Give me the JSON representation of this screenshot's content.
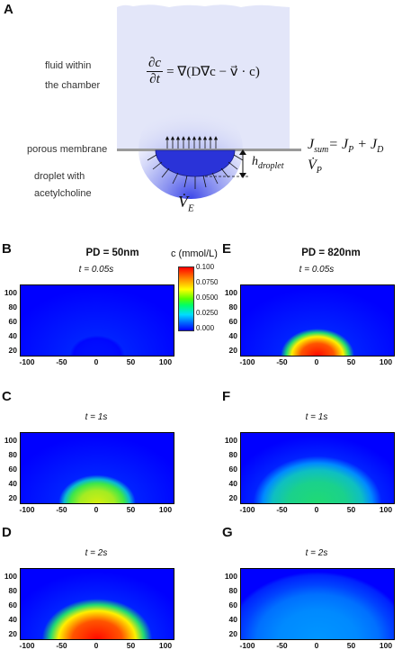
{
  "panel_a": {
    "letter": "A",
    "fluid_label_1": "fluid within",
    "fluid_label_2": "the chamber",
    "membrane_label": "porous membrane",
    "droplet_label_1": "droplet with",
    "droplet_label_2": "acetylcholine",
    "equation_lhs_num": "∂c",
    "equation_lhs_den": "∂t",
    "equation_rhs": "= ∇(D∇c − v⃗ · c)",
    "h_label": "h",
    "h_sub": "droplet",
    "j_sum": "J",
    "j_sum_sub": "sum",
    "j_eq": "= J",
    "j_p_sub": "P",
    "j_plus": " + J",
    "j_d_sub": "D",
    "vp": "V̇",
    "vp_sub": "P",
    "ve": "V̇",
    "ve_sub": "E"
  },
  "colorbar": {
    "title": "c (mmol/L)",
    "ticks": [
      "0.100",
      "0.0750",
      "0.0500",
      "0.0250",
      "0.000"
    ]
  },
  "columns": {
    "left_title": "PD = 50nm",
    "right_title": "PD = 820nm"
  },
  "axes": {
    "y_ticks": [
      "100",
      "80",
      "60",
      "40",
      "20"
    ],
    "x_ticks": [
      "-100",
      "-50",
      "0",
      "50",
      "100"
    ]
  },
  "panels": [
    {
      "letter": "B",
      "time": "t = 0.05s",
      "intensity": 0.02,
      "radius": 0.3
    },
    {
      "letter": "C",
      "time": "t = 1s",
      "intensity": 0.7,
      "radius": 0.42
    },
    {
      "letter": "D",
      "time": "t = 2s",
      "intensity": 1.0,
      "radius": 0.6
    },
    {
      "letter": "E",
      "time": "t = 0.05s",
      "intensity": 1.0,
      "radius": 0.4
    },
    {
      "letter": "F",
      "time": "t = 1s",
      "intensity": 0.45,
      "radius": 0.7
    },
    {
      "letter": "G",
      "time": "t = 2s",
      "intensity": 0.22,
      "radius": 0.95
    }
  ],
  "colors": {
    "chamber": "#e3e6f9",
    "droplet": "#2a33d8",
    "membrane": "#9a9a9a",
    "heat_bg": "#0000ff"
  }
}
